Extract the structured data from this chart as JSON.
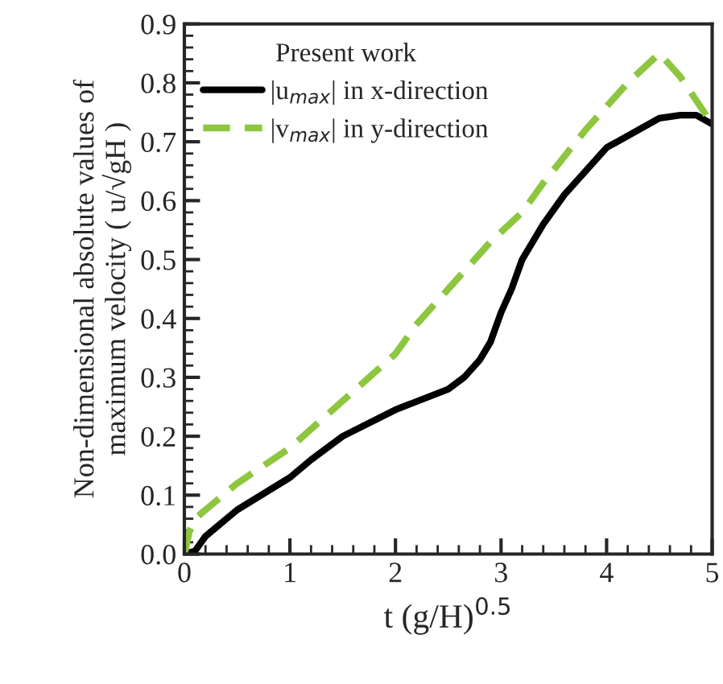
{
  "chart_data": {
    "type": "line",
    "xlabel": "t (g/H)$^{0.5}$",
    "ylabel": "Non-dimensional absolute values of\nmaximum velocity ( u/√gH )",
    "legend_title": "Present work",
    "legend": "top left",
    "grid": false,
    "xlim": [
      0,
      5
    ],
    "xticks": [
      0,
      1,
      2,
      3,
      4,
      5
    ],
    "ylim": [
      0,
      0.9
    ],
    "yticks": [
      {
        "value": 0,
        "label": "0.0"
      },
      0.1,
      0.2,
      0.3,
      0.4,
      0.5,
      0.6,
      0.7,
      0.8,
      0.9
    ],
    "series": [
      {
        "name": "|u$_{max}$| in x-direction",
        "color": "#000000",
        "line_style": "solid",
        "x": [
          0,
          0.1,
          0.2,
          0.5,
          1,
          1.2,
          1.5,
          2,
          2.5,
          2.65,
          2.8,
          2.9,
          3,
          3.1,
          3.2,
          3.4,
          3.6,
          3.8,
          4,
          4.2,
          4.5,
          4.7,
          4.85,
          5
        ],
        "values": [
          0,
          0.005,
          0.03,
          0.075,
          0.13,
          0.16,
          0.2,
          0.245,
          0.28,
          0.3,
          0.33,
          0.36,
          0.41,
          0.45,
          0.5,
          0.56,
          0.61,
          0.65,
          0.69,
          0.71,
          0.74,
          0.745,
          0.745,
          0.73
        ]
      },
      {
        "name": "|v$_{max}$| in y-direction",
        "color": "#8dc63f",
        "line_style": "dashed",
        "x": [
          0,
          0.05,
          0.1,
          0.5,
          1,
          1.5,
          2,
          2.2,
          2.5,
          2.9,
          3.2,
          3.4,
          3.8,
          4.2,
          4.5,
          4.7,
          5
        ],
        "values": [
          0,
          0.04,
          0.06,
          0.12,
          0.18,
          0.26,
          0.34,
          0.39,
          0.45,
          0.53,
          0.58,
          0.63,
          0.72,
          0.8,
          0.85,
          0.81,
          0.73
        ]
      }
    ]
  }
}
